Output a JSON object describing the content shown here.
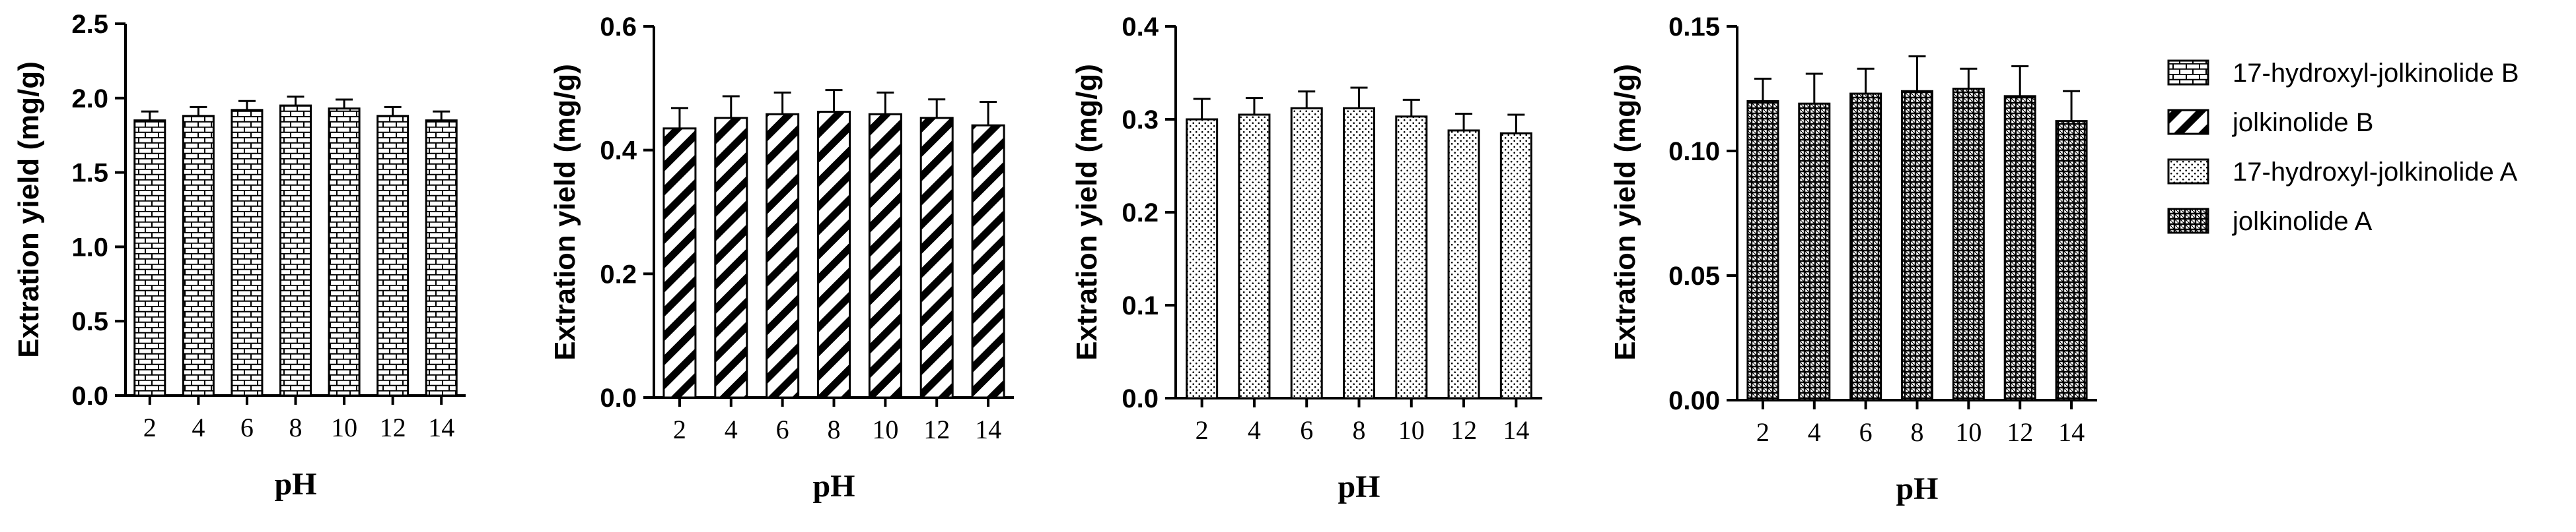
{
  "figure": {
    "legend": [
      {
        "label": "17-hydroxyl-jolkinolide B",
        "pattern": "brick"
      },
      {
        "label": "jolkinolide B",
        "pattern": "diagonal"
      },
      {
        "label": "17-hydroxyl-jolkinolide A",
        "pattern": "dots"
      },
      {
        "label": "jolkinolide A",
        "pattern": "dense"
      }
    ],
    "legend_position": "right"
  },
  "chart_data": [
    {
      "type": "bar",
      "categories": [
        "2",
        "4",
        "6",
        "8",
        "10",
        "12",
        "14"
      ],
      "series": [
        {
          "name": "17-hydroxyl-jolkinolide B",
          "values": [
            1.85,
            1.88,
            1.92,
            1.95,
            1.93,
            1.88,
            1.85
          ],
          "errors": [
            0.06,
            0.06,
            0.06,
            0.06,
            0.06,
            0.06,
            0.06
          ]
        }
      ],
      "pattern": "brick",
      "xlabel": "pH",
      "ylabel": "Extration yield  (mg/g)",
      "ylim": [
        0,
        2.5
      ],
      "yticks": [
        "0.0",
        "0.5",
        "1.0",
        "1.5",
        "2.0",
        "2.5"
      ]
    },
    {
      "type": "bar",
      "categories": [
        "2",
        "4",
        "6",
        "8",
        "10",
        "12",
        "14"
      ],
      "series": [
        {
          "name": "jolkinolide B",
          "values": [
            0.435,
            0.452,
            0.458,
            0.462,
            0.458,
            0.452,
            0.44
          ],
          "errors": [
            0.033,
            0.035,
            0.035,
            0.035,
            0.035,
            0.03,
            0.038
          ]
        }
      ],
      "pattern": "diagonal",
      "xlabel": "pH",
      "ylabel": "Extration yield  (mg/g)",
      "ylim": [
        0,
        0.6
      ],
      "yticks": [
        "0.0",
        "0.2",
        "0.4",
        "0.6"
      ]
    },
    {
      "type": "bar",
      "categories": [
        "2",
        "4",
        "6",
        "8",
        "10",
        "12",
        "14"
      ],
      "series": [
        {
          "name": "17-hydroxyl-jolkinolide A",
          "values": [
            0.3,
            0.305,
            0.312,
            0.312,
            0.303,
            0.288,
            0.285
          ],
          "errors": [
            0.022,
            0.018,
            0.018,
            0.022,
            0.018,
            0.018,
            0.02
          ]
        }
      ],
      "pattern": "dots",
      "xlabel": "pH",
      "ylabel": "Extration yield  (mg/g)",
      "ylim": [
        0,
        0.4
      ],
      "yticks": [
        "0.0",
        "0.1",
        "0.2",
        "0.3",
        "0.4"
      ]
    },
    {
      "type": "bar",
      "categories": [
        "2",
        "4",
        "6",
        "8",
        "10",
        "12",
        "14"
      ],
      "series": [
        {
          "name": "jolkinolide A",
          "values": [
            0.12,
            0.119,
            0.123,
            0.124,
            0.125,
            0.122,
            0.112
          ],
          "errors": [
            0.009,
            0.012,
            0.01,
            0.014,
            0.008,
            0.012,
            0.012
          ]
        }
      ],
      "pattern": "dense",
      "xlabel": "pH",
      "ylabel": "Extration yield  (mg/g)",
      "ylim": [
        0,
        0.15
      ],
      "yticks": [
        "0.00",
        "0.05",
        "0.10",
        "0.15"
      ]
    }
  ]
}
